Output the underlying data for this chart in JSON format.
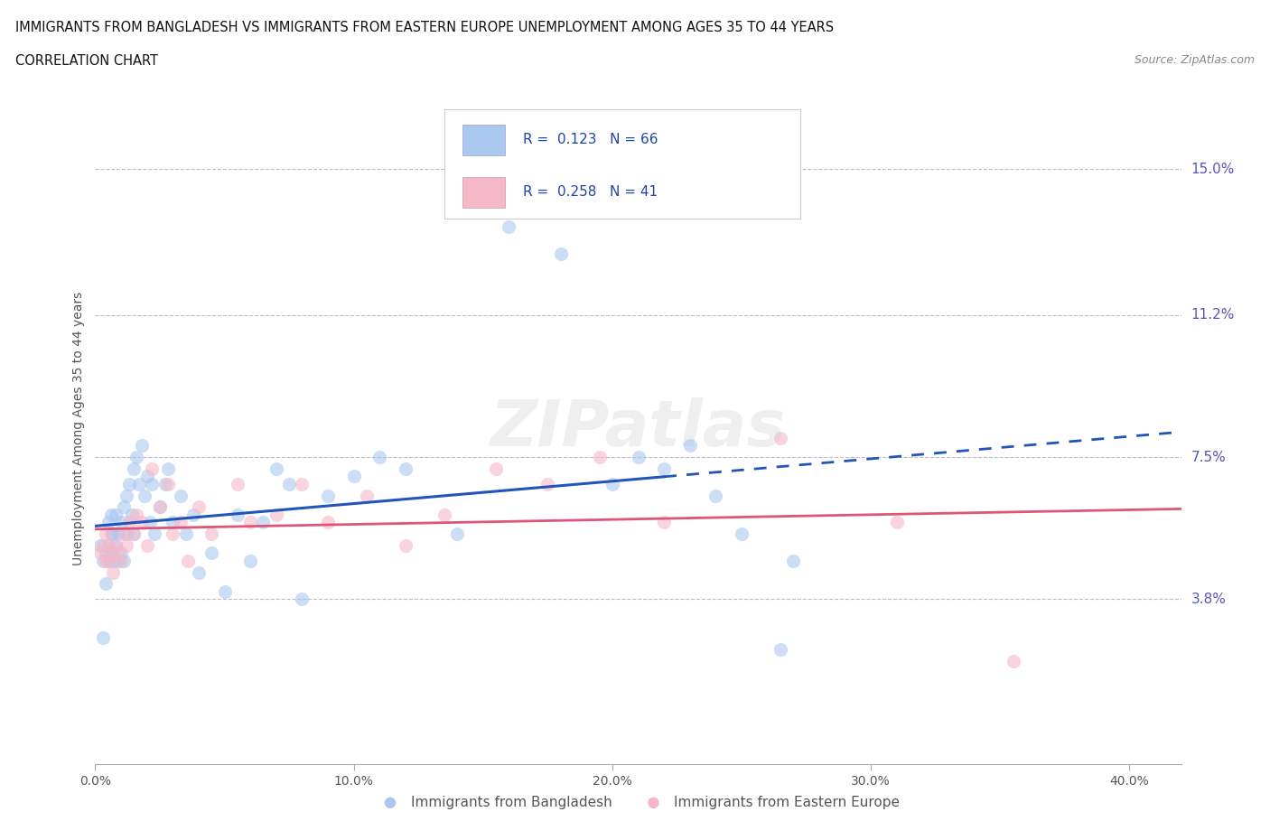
{
  "title_line1": "IMMIGRANTS FROM BANGLADESH VS IMMIGRANTS FROM EASTERN EUROPE UNEMPLOYMENT AMONG AGES 35 TO 44 YEARS",
  "title_line2": "CORRELATION CHART",
  "source_text": "Source: ZipAtlas.com",
  "ylabel": "Unemployment Among Ages 35 to 44 years",
  "xlim": [
    0.0,
    0.42
  ],
  "ylim": [
    -0.005,
    0.17
  ],
  "xticks": [
    0.0,
    0.1,
    0.2,
    0.3,
    0.4
  ],
  "xticklabels": [
    "0.0%",
    "10.0%",
    "20.0%",
    "30.0%",
    "40.0%"
  ],
  "ytick_positions": [
    0.038,
    0.075,
    0.112,
    0.15
  ],
  "ytick_labels": [
    "3.8%",
    "7.5%",
    "11.2%",
    "15.0%"
  ],
  "grid_color": "#bbbbcc",
  "background_color": "#ffffff",
  "bangladesh_color": "#aac8f0",
  "eastern_europe_color": "#f5b8c8",
  "bangladesh_line_color": "#2255bb",
  "eastern_europe_line_color": "#dd5577",
  "legend_R1": "0.123",
  "legend_N1": "66",
  "legend_R2": "0.258",
  "legend_N2": "41",
  "label1": "Immigrants from Bangladesh",
  "label2": "Immigrants from Eastern Europe",
  "watermark": "ZIPatlas",
  "bangladesh_x": [
    0.002,
    0.003,
    0.003,
    0.004,
    0.004,
    0.005,
    0.005,
    0.005,
    0.006,
    0.006,
    0.006,
    0.007,
    0.007,
    0.008,
    0.008,
    0.009,
    0.009,
    0.01,
    0.01,
    0.011,
    0.011,
    0.012,
    0.012,
    0.013,
    0.014,
    0.015,
    0.015,
    0.016,
    0.017,
    0.018,
    0.019,
    0.02,
    0.021,
    0.022,
    0.023,
    0.025,
    0.027,
    0.028,
    0.03,
    0.033,
    0.035,
    0.038,
    0.04,
    0.045,
    0.05,
    0.055,
    0.06,
    0.065,
    0.07,
    0.075,
    0.08,
    0.09,
    0.1,
    0.11,
    0.12,
    0.14,
    0.16,
    0.18,
    0.2,
    0.21,
    0.22,
    0.23,
    0.24,
    0.25,
    0.265,
    0.27
  ],
  "bangladesh_y": [
    0.052,
    0.028,
    0.048,
    0.05,
    0.042,
    0.048,
    0.052,
    0.058,
    0.05,
    0.055,
    0.06,
    0.048,
    0.055,
    0.052,
    0.06,
    0.048,
    0.055,
    0.05,
    0.058,
    0.048,
    0.062,
    0.055,
    0.065,
    0.068,
    0.06,
    0.055,
    0.072,
    0.075,
    0.068,
    0.078,
    0.065,
    0.07,
    0.058,
    0.068,
    0.055,
    0.062,
    0.068,
    0.072,
    0.058,
    0.065,
    0.055,
    0.06,
    0.045,
    0.05,
    0.04,
    0.06,
    0.048,
    0.058,
    0.072,
    0.068,
    0.038,
    0.065,
    0.07,
    0.075,
    0.072,
    0.055,
    0.135,
    0.128,
    0.068,
    0.075,
    0.072,
    0.078,
    0.065,
    0.055,
    0.025,
    0.048
  ],
  "eastern_europe_x": [
    0.002,
    0.003,
    0.004,
    0.004,
    0.005,
    0.005,
    0.006,
    0.007,
    0.008,
    0.009,
    0.01,
    0.011,
    0.012,
    0.013,
    0.015,
    0.016,
    0.018,
    0.02,
    0.022,
    0.025,
    0.028,
    0.03,
    0.033,
    0.036,
    0.04,
    0.045,
    0.055,
    0.06,
    0.07,
    0.08,
    0.09,
    0.105,
    0.12,
    0.135,
    0.155,
    0.175,
    0.195,
    0.22,
    0.265,
    0.31,
    0.355
  ],
  "eastern_europe_y": [
    0.05,
    0.052,
    0.048,
    0.055,
    0.048,
    0.052,
    0.05,
    0.045,
    0.052,
    0.05,
    0.048,
    0.055,
    0.052,
    0.058,
    0.055,
    0.06,
    0.058,
    0.052,
    0.072,
    0.062,
    0.068,
    0.055,
    0.058,
    0.048,
    0.062,
    0.055,
    0.068,
    0.058,
    0.06,
    0.068,
    0.058,
    0.065,
    0.052,
    0.06,
    0.072,
    0.068,
    0.075,
    0.058,
    0.08,
    0.058,
    0.022
  ],
  "bangladesh_line_solid_end": 0.22,
  "bangladesh_line_x_start": 0.002,
  "bangladesh_line_x_end": 0.42
}
